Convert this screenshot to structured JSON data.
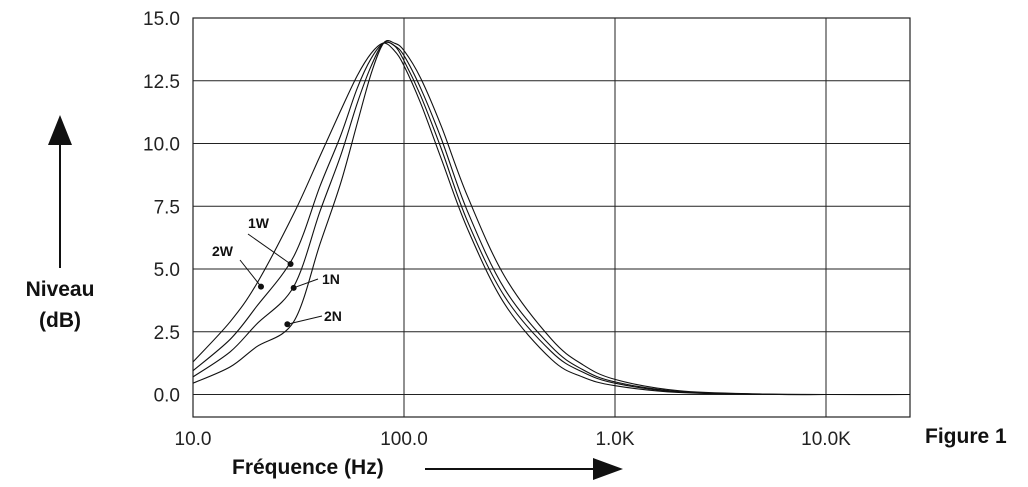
{
  "figure_label": "Figure 1",
  "chart_data": {
    "type": "line",
    "title": "",
    "ylabel_line1": "Niveau",
    "ylabel_line2": "(dB)",
    "xlabel": "Fréquence (Hz)",
    "x_scale": "log",
    "xlim": [
      10,
      25000
    ],
    "ylim": [
      -1,
      15
    ],
    "grid": true,
    "x_ticks": [
      {
        "value": 10,
        "label": "10.0"
      },
      {
        "value": 100,
        "label": "100.0"
      },
      {
        "value": 1000,
        "label": "1.0K"
      },
      {
        "value": 10000,
        "label": "10.0K"
      }
    ],
    "y_ticks": [
      {
        "value": 0,
        "label": "0.0"
      },
      {
        "value": 2.5,
        "label": "2.5"
      },
      {
        "value": 5,
        "label": "5.0"
      },
      {
        "value": 7.5,
        "label": "7.5"
      },
      {
        "value": 10,
        "label": "10.0"
      },
      {
        "value": 12.5,
        "label": "12.5"
      },
      {
        "value": 15,
        "label": "15.0"
      }
    ],
    "series": [
      {
        "name": "2W",
        "x": [
          10,
          15,
          20,
          30,
          40,
          50,
          60,
          70,
          80,
          90,
          100,
          120,
          150,
          200,
          300,
          500,
          700,
          1000,
          2000,
          5000,
          10000,
          25000
        ],
        "y": [
          1.3,
          2.9,
          4.4,
          7.2,
          9.5,
          11.3,
          12.7,
          13.6,
          14.0,
          13.7,
          13.1,
          11.6,
          9.4,
          6.6,
          3.6,
          1.4,
          0.7,
          0.35,
          0.08,
          0.01,
          0.0,
          0.0
        ]
      },
      {
        "name": "1W",
        "x": [
          10,
          15,
          20,
          30,
          40,
          50,
          60,
          70,
          80,
          90,
          100,
          120,
          150,
          200,
          300,
          500,
          700,
          1000,
          2000,
          5000,
          10000,
          25000
        ],
        "y": [
          0.95,
          2.2,
          3.5,
          5.5,
          8.3,
          10.3,
          12.2,
          13.4,
          14.0,
          13.9,
          13.3,
          11.9,
          9.8,
          6.9,
          3.9,
          1.7,
          0.9,
          0.45,
          0.1,
          0.01,
          0.0,
          0.0
        ]
      },
      {
        "name": "1N",
        "x": [
          10,
          15,
          20,
          30,
          40,
          50,
          60,
          70,
          80,
          90,
          100,
          120,
          150,
          200,
          300,
          500,
          700,
          1000,
          2000,
          5000,
          10000,
          25000
        ],
        "y": [
          0.7,
          1.7,
          2.8,
          4.3,
          7.3,
          9.5,
          11.6,
          13.1,
          14.0,
          13.9,
          13.5,
          12.2,
          10.2,
          7.3,
          4.2,
          1.9,
          1.0,
          0.5,
          0.12,
          0.01,
          0.0,
          0.0
        ]
      },
      {
        "name": "2N",
        "x": [
          10,
          15,
          20,
          30,
          40,
          50,
          60,
          70,
          80,
          90,
          100,
          120,
          150,
          200,
          300,
          500,
          700,
          1000,
          2000,
          5000,
          10000,
          25000
        ],
        "y": [
          0.45,
          1.1,
          1.9,
          2.9,
          6.0,
          8.4,
          10.8,
          12.8,
          14.0,
          14.0,
          13.7,
          12.6,
          10.7,
          7.9,
          4.7,
          2.2,
          1.2,
          0.6,
          0.15,
          0.02,
          0.0,
          0.0
        ]
      }
    ],
    "annotations": [
      {
        "series": "1W",
        "label": "1W",
        "x": 29,
        "y": 5.2
      },
      {
        "series": "2W",
        "label": "2W",
        "x": 21,
        "y": 4.3
      },
      {
        "series": "1N",
        "label": "1N",
        "x": 30,
        "y": 4.25
      },
      {
        "series": "2N",
        "label": "2N",
        "x": 28,
        "y": 2.8
      }
    ]
  }
}
